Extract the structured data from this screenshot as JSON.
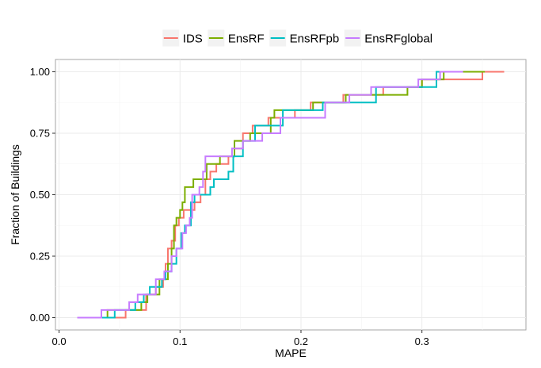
{
  "chart_data": {
    "type": "line",
    "step": true,
    "xlabel": "MAPE",
    "ylabel": "Fraction of Buildings",
    "xlim": [
      -0.003,
      0.386
    ],
    "ylim": [
      -0.05,
      1.05
    ],
    "x_ticks": [
      0.0,
      0.1,
      0.2,
      0.3
    ],
    "x_tick_labels": [
      "0.0",
      "0.1",
      "0.2",
      "0.3"
    ],
    "y_ticks": [
      0.0,
      0.25,
      0.5,
      0.75,
      1.0
    ],
    "y_tick_labels": [
      "0.00",
      "0.25",
      "0.50",
      "0.75",
      "1.00"
    ],
    "grid": true,
    "legend_position": "top",
    "series": [
      {
        "name": "IDS",
        "color": "#F8766D",
        "points": [
          [
            0.015,
            0
          ],
          [
            0.055,
            0
          ],
          [
            0.055,
            0.031
          ],
          [
            0.072,
            0.031
          ],
          [
            0.072,
            0.094
          ],
          [
            0.08,
            0.094
          ],
          [
            0.08,
            0.125
          ],
          [
            0.086,
            0.125
          ],
          [
            0.086,
            0.156
          ],
          [
            0.088,
            0.156
          ],
          [
            0.088,
            0.219
          ],
          [
            0.09,
            0.219
          ],
          [
            0.09,
            0.281
          ],
          [
            0.093,
            0.281
          ],
          [
            0.093,
            0.313
          ],
          [
            0.096,
            0.313
          ],
          [
            0.096,
            0.375
          ],
          [
            0.099,
            0.375
          ],
          [
            0.099,
            0.406
          ],
          [
            0.103,
            0.406
          ],
          [
            0.103,
            0.438
          ],
          [
            0.112,
            0.438
          ],
          [
            0.112,
            0.469
          ],
          [
            0.117,
            0.469
          ],
          [
            0.117,
            0.5
          ],
          [
            0.121,
            0.5
          ],
          [
            0.121,
            0.563
          ],
          [
            0.125,
            0.563
          ],
          [
            0.125,
            0.594
          ],
          [
            0.13,
            0.594
          ],
          [
            0.13,
            0.625
          ],
          [
            0.14,
            0.625
          ],
          [
            0.14,
            0.656
          ],
          [
            0.145,
            0.656
          ],
          [
            0.145,
            0.688
          ],
          [
            0.152,
            0.688
          ],
          [
            0.152,
            0.75
          ],
          [
            0.16,
            0.75
          ],
          [
            0.16,
            0.781
          ],
          [
            0.173,
            0.781
          ],
          [
            0.173,
            0.813
          ],
          [
            0.195,
            0.813
          ],
          [
            0.195,
            0.844
          ],
          [
            0.208,
            0.844
          ],
          [
            0.208,
            0.875
          ],
          [
            0.235,
            0.875
          ],
          [
            0.235,
            0.906
          ],
          [
            0.268,
            0.906
          ],
          [
            0.268,
            0.938
          ],
          [
            0.3,
            0.938
          ],
          [
            0.3,
            0.969
          ],
          [
            0.35,
            0.969
          ],
          [
            0.35,
            1.0
          ],
          [
            0.368,
            1.0
          ]
        ]
      },
      {
        "name": "EnsRF",
        "color": "#7CAE00",
        "points": [
          [
            0.015,
            0
          ],
          [
            0.04,
            0
          ],
          [
            0.04,
            0.031
          ],
          [
            0.068,
            0.031
          ],
          [
            0.068,
            0.063
          ],
          [
            0.073,
            0.063
          ],
          [
            0.073,
            0.094
          ],
          [
            0.083,
            0.094
          ],
          [
            0.083,
            0.156
          ],
          [
            0.09,
            0.156
          ],
          [
            0.09,
            0.219
          ],
          [
            0.093,
            0.219
          ],
          [
            0.093,
            0.281
          ],
          [
            0.095,
            0.281
          ],
          [
            0.095,
            0.375
          ],
          [
            0.097,
            0.375
          ],
          [
            0.097,
            0.406
          ],
          [
            0.1,
            0.406
          ],
          [
            0.1,
            0.438
          ],
          [
            0.102,
            0.438
          ],
          [
            0.102,
            0.469
          ],
          [
            0.104,
            0.469
          ],
          [
            0.104,
            0.531
          ],
          [
            0.111,
            0.531
          ],
          [
            0.111,
            0.563
          ],
          [
            0.122,
            0.563
          ],
          [
            0.122,
            0.625
          ],
          [
            0.133,
            0.625
          ],
          [
            0.133,
            0.656
          ],
          [
            0.145,
            0.656
          ],
          [
            0.145,
            0.719
          ],
          [
            0.158,
            0.719
          ],
          [
            0.158,
            0.75
          ],
          [
            0.175,
            0.75
          ],
          [
            0.175,
            0.813
          ],
          [
            0.178,
            0.813
          ],
          [
            0.178,
            0.844
          ],
          [
            0.21,
            0.844
          ],
          [
            0.21,
            0.875
          ],
          [
            0.237,
            0.875
          ],
          [
            0.237,
            0.906
          ],
          [
            0.288,
            0.906
          ],
          [
            0.288,
            0.938
          ],
          [
            0.3,
            0.938
          ],
          [
            0.3,
            0.969
          ],
          [
            0.318,
            0.969
          ],
          [
            0.318,
            1.0
          ],
          [
            0.352,
            1.0
          ]
        ]
      },
      {
        "name": "EnsRFpb",
        "color": "#00BFC4",
        "points": [
          [
            0.015,
            0
          ],
          [
            0.046,
            0
          ],
          [
            0.046,
            0.031
          ],
          [
            0.063,
            0.031
          ],
          [
            0.063,
            0.063
          ],
          [
            0.07,
            0.063
          ],
          [
            0.07,
            0.094
          ],
          [
            0.075,
            0.094
          ],
          [
            0.075,
            0.125
          ],
          [
            0.085,
            0.125
          ],
          [
            0.085,
            0.156
          ],
          [
            0.088,
            0.156
          ],
          [
            0.088,
            0.188
          ],
          [
            0.093,
            0.188
          ],
          [
            0.093,
            0.219
          ],
          [
            0.097,
            0.219
          ],
          [
            0.097,
            0.281
          ],
          [
            0.101,
            0.281
          ],
          [
            0.101,
            0.344
          ],
          [
            0.104,
            0.344
          ],
          [
            0.104,
            0.375
          ],
          [
            0.109,
            0.375
          ],
          [
            0.109,
            0.469
          ],
          [
            0.112,
            0.469
          ],
          [
            0.112,
            0.5
          ],
          [
            0.125,
            0.5
          ],
          [
            0.125,
            0.531
          ],
          [
            0.128,
            0.531
          ],
          [
            0.128,
            0.563
          ],
          [
            0.14,
            0.563
          ],
          [
            0.14,
            0.594
          ],
          [
            0.144,
            0.594
          ],
          [
            0.144,
            0.656
          ],
          [
            0.152,
            0.656
          ],
          [
            0.152,
            0.719
          ],
          [
            0.162,
            0.719
          ],
          [
            0.162,
            0.781
          ],
          [
            0.185,
            0.781
          ],
          [
            0.185,
            0.844
          ],
          [
            0.218,
            0.844
          ],
          [
            0.218,
            0.875
          ],
          [
            0.262,
            0.875
          ],
          [
            0.262,
            0.938
          ],
          [
            0.312,
            0.938
          ],
          [
            0.312,
            1.0
          ],
          [
            0.33,
            1.0
          ]
        ]
      },
      {
        "name": "EnsRFglobal",
        "color": "#C77CFF",
        "points": [
          [
            0.015,
            0
          ],
          [
            0.035,
            0
          ],
          [
            0.035,
            0.031
          ],
          [
            0.058,
            0.031
          ],
          [
            0.058,
            0.063
          ],
          [
            0.065,
            0.063
          ],
          [
            0.065,
            0.094
          ],
          [
            0.08,
            0.094
          ],
          [
            0.08,
            0.156
          ],
          [
            0.087,
            0.156
          ],
          [
            0.087,
            0.188
          ],
          [
            0.093,
            0.188
          ],
          [
            0.093,
            0.25
          ],
          [
            0.097,
            0.25
          ],
          [
            0.097,
            0.281
          ],
          [
            0.102,
            0.281
          ],
          [
            0.102,
            0.344
          ],
          [
            0.105,
            0.344
          ],
          [
            0.105,
            0.375
          ],
          [
            0.108,
            0.375
          ],
          [
            0.108,
            0.406
          ],
          [
            0.11,
            0.406
          ],
          [
            0.11,
            0.5
          ],
          [
            0.116,
            0.5
          ],
          [
            0.116,
            0.531
          ],
          [
            0.119,
            0.531
          ],
          [
            0.119,
            0.594
          ],
          [
            0.121,
            0.594
          ],
          [
            0.121,
            0.656
          ],
          [
            0.143,
            0.656
          ],
          [
            0.143,
            0.688
          ],
          [
            0.152,
            0.688
          ],
          [
            0.152,
            0.719
          ],
          [
            0.168,
            0.719
          ],
          [
            0.168,
            0.75
          ],
          [
            0.183,
            0.75
          ],
          [
            0.183,
            0.813
          ],
          [
            0.22,
            0.813
          ],
          [
            0.22,
            0.875
          ],
          [
            0.24,
            0.875
          ],
          [
            0.24,
            0.906
          ],
          [
            0.258,
            0.906
          ],
          [
            0.258,
            0.938
          ],
          [
            0.297,
            0.938
          ],
          [
            0.297,
            0.969
          ],
          [
            0.315,
            0.969
          ],
          [
            0.315,
            1.0
          ],
          [
            0.334,
            1.0
          ]
        ]
      }
    ]
  }
}
